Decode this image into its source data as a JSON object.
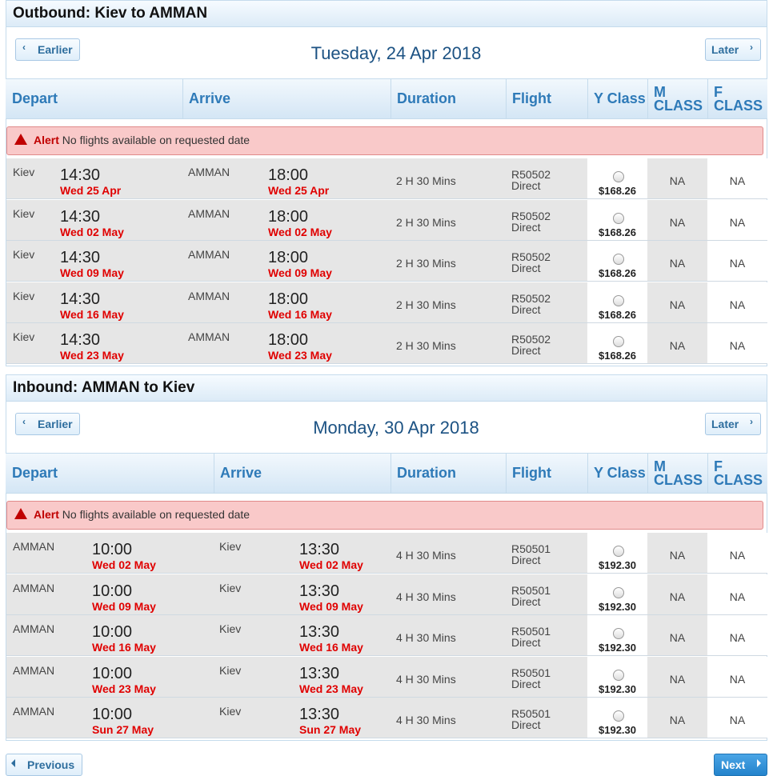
{
  "sections": [
    {
      "title": "Outbound: Kiev to AMMAN",
      "earlier": "Earlier",
      "later": "Later",
      "date": "Tuesday, 24 Apr 2018",
      "headers": [
        "Depart",
        "Arrive",
        "Duration",
        "Flight",
        "Y Class",
        "M CLASS",
        "F CLASS"
      ],
      "alert_label": "Alert",
      "alert_text": "No flights available on requested date",
      "rows": [
        {
          "from": "Kiev",
          "dep_time": "14:30",
          "dep_date": "Wed 25 Apr",
          "to": "AMMAN",
          "arr_time": "18:00",
          "arr_date": "Wed 25 Apr",
          "duration": "2 H 30 Mins",
          "flight": "R50502",
          "stops": "Direct",
          "y": "$168.26",
          "m": "NA",
          "f": "NA"
        },
        {
          "from": "Kiev",
          "dep_time": "14:30",
          "dep_date": "Wed 02 May",
          "to": "AMMAN",
          "arr_time": "18:00",
          "arr_date": "Wed 02 May",
          "duration": "2 H 30 Mins",
          "flight": "R50502",
          "stops": "Direct",
          "y": "$168.26",
          "m": "NA",
          "f": "NA"
        },
        {
          "from": "Kiev",
          "dep_time": "14:30",
          "dep_date": "Wed 09 May",
          "to": "AMMAN",
          "arr_time": "18:00",
          "arr_date": "Wed 09 May",
          "duration": "2 H 30 Mins",
          "flight": "R50502",
          "stops": "Direct",
          "y": "$168.26",
          "m": "NA",
          "f": "NA"
        },
        {
          "from": "Kiev",
          "dep_time": "14:30",
          "dep_date": "Wed 16 May",
          "to": "AMMAN",
          "arr_time": "18:00",
          "arr_date": "Wed 16 May",
          "duration": "2 H 30 Mins",
          "flight": "R50502",
          "stops": "Direct",
          "y": "$168.26",
          "m": "NA",
          "f": "NA"
        },
        {
          "from": "Kiev",
          "dep_time": "14:30",
          "dep_date": "Wed 23 May",
          "to": "AMMAN",
          "arr_time": "18:00",
          "arr_date": "Wed 23 May",
          "duration": "2 H 30 Mins",
          "flight": "R50502",
          "stops": "Direct",
          "y": "$168.26",
          "m": "NA",
          "f": "NA"
        }
      ]
    },
    {
      "title": "Inbound: AMMAN to Kiev",
      "earlier": "Earlier",
      "later": "Later",
      "date": "Monday, 30 Apr 2018",
      "headers": [
        "Depart",
        "Arrive",
        "Duration",
        "Flight",
        "Y Class",
        "M CLASS",
        "F CLASS"
      ],
      "alert_label": "Alert",
      "alert_text": "No flights available on requested date",
      "rows": [
        {
          "from": "AMMAN",
          "dep_time": "10:00",
          "dep_date": "Wed 02 May",
          "to": "Kiev",
          "arr_time": "13:30",
          "arr_date": "Wed 02 May",
          "duration": "4 H 30 Mins",
          "flight": "R50501",
          "stops": "Direct",
          "y": "$192.30",
          "m": "NA",
          "f": "NA"
        },
        {
          "from": "AMMAN",
          "dep_time": "10:00",
          "dep_date": "Wed 09 May",
          "to": "Kiev",
          "arr_time": "13:30",
          "arr_date": "Wed 09 May",
          "duration": "4 H 30 Mins",
          "flight": "R50501",
          "stops": "Direct",
          "y": "$192.30",
          "m": "NA",
          "f": "NA"
        },
        {
          "from": "AMMAN",
          "dep_time": "10:00",
          "dep_date": "Wed 16 May",
          "to": "Kiev",
          "arr_time": "13:30",
          "arr_date": "Wed 16 May",
          "duration": "4 H 30 Mins",
          "flight": "R50501",
          "stops": "Direct",
          "y": "$192.30",
          "m": "NA",
          "f": "NA"
        },
        {
          "from": "AMMAN",
          "dep_time": "10:00",
          "dep_date": "Wed 23 May",
          "to": "Kiev",
          "arr_time": "13:30",
          "arr_date": "Wed 23 May",
          "duration": "4 H 30 Mins",
          "flight": "R50501",
          "stops": "Direct",
          "y": "$192.30",
          "m": "NA",
          "f": "NA"
        },
        {
          "from": "AMMAN",
          "dep_time": "10:00",
          "dep_date": "Sun 27 May",
          "to": "Kiev",
          "arr_time": "13:30",
          "arr_date": "Sun 27 May",
          "duration": "4 H 30 Mins",
          "flight": "R50501",
          "stops": "Direct",
          "y": "$192.30",
          "m": "NA",
          "f": "NA"
        }
      ]
    }
  ],
  "nav": {
    "previous": "Previous",
    "next": "Next"
  }
}
